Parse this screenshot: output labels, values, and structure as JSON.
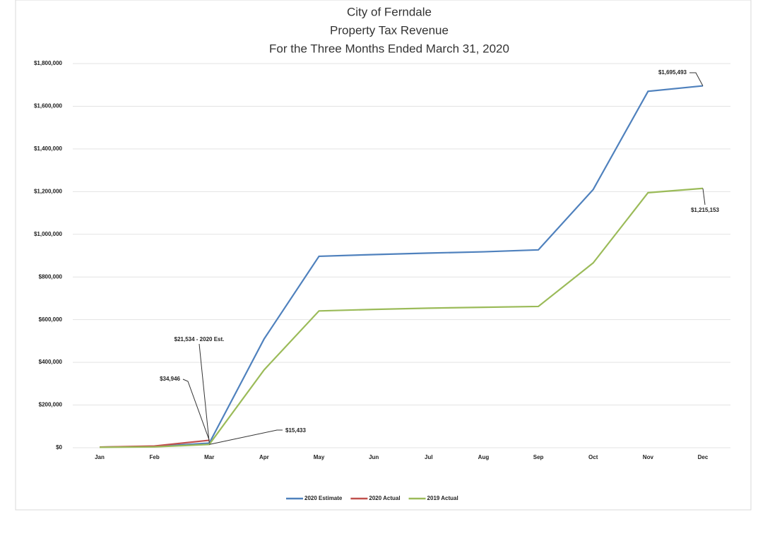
{
  "chart_data": {
    "type": "line",
    "title": [
      "City of Ferndale",
      "Property Tax Revenue",
      "For the Three Months Ended March 31, 2020"
    ],
    "categories": [
      "Jan",
      "Feb",
      "Mar",
      "Apr",
      "May",
      "Jun",
      "Jul",
      "Aug",
      "Sep",
      "Oct",
      "Nov",
      "Dec"
    ],
    "series": [
      {
        "name": "2020 Estimate",
        "color": "#4f81bd",
        "values": [
          3000,
          6000,
          21534,
          510000,
          897000,
          905000,
          912000,
          918000,
          927000,
          1210000,
          1670000,
          1695493
        ],
        "value_labels": [
          null,
          null,
          "$21,534 - 2020 Est.",
          null,
          null,
          null,
          null,
          null,
          null,
          null,
          null,
          "$1,695,493"
        ]
      },
      {
        "name": "2020 Actual",
        "color": "#c0504d",
        "values": [
          3000,
          8000,
          34946,
          null,
          null,
          null,
          null,
          null,
          null,
          null,
          null,
          null
        ],
        "value_labels": [
          null,
          null,
          "$34,946",
          null,
          null,
          null,
          null,
          null,
          null,
          null,
          null,
          null
        ]
      },
      {
        "name": "2019 Actual",
        "color": "#9bbb59",
        "values": [
          2000,
          4000,
          15433,
          365000,
          641000,
          648000,
          654000,
          658000,
          662000,
          866000,
          1195000,
          1215153
        ],
        "value_labels": [
          null,
          null,
          "$15,433",
          null,
          null,
          null,
          null,
          null,
          null,
          null,
          null,
          "$1,215,153"
        ]
      }
    ],
    "ylim": [
      0,
      1800000
    ],
    "yticks": [
      {
        "value": 0,
        "label": "$0"
      },
      {
        "value": 200000,
        "label": "$200,000"
      },
      {
        "value": 400000,
        "label": "$400,000"
      },
      {
        "value": 600000,
        "label": "$600,000"
      },
      {
        "value": 800000,
        "label": "$800,000"
      },
      {
        "value": 1000000,
        "label": "$1,000,000"
      },
      {
        "value": 1200000,
        "label": "$1,200,000"
      },
      {
        "value": 1400000,
        "label": "$1,400,000"
      },
      {
        "value": 1600000,
        "label": "$1,600,000"
      },
      {
        "value": 1800000,
        "label": "$1,800,000"
      }
    ],
    "grid": true,
    "legend": "bottom"
  }
}
